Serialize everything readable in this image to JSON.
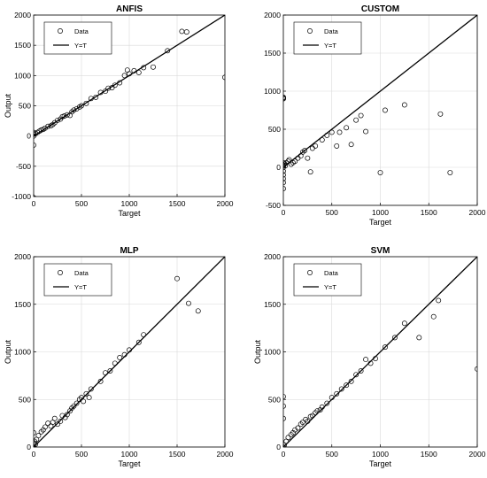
{
  "chart_data": [
    {
      "type": "scatter",
      "title": "ANFIS",
      "xlabel": "Target",
      "ylabel": "Output",
      "xlim": [
        0,
        2000
      ],
      "ylim": [
        -1000,
        2000
      ],
      "xticks": [
        0,
        500,
        1000,
        1500,
        2000
      ],
      "yticks": [
        -1000,
        -500,
        0,
        500,
        1000,
        1500,
        2000
      ],
      "grid": true,
      "legend": {
        "position": "top-left",
        "entries": [
          "Data",
          "Y=T"
        ]
      },
      "line": {
        "name": "Y=T",
        "x": [
          0,
          2000
        ],
        "y": [
          0,
          2000
        ]
      },
      "series": [
        {
          "name": "Data",
          "x": [
            0,
            0,
            0,
            0,
            0,
            20,
            40,
            60,
            80,
            100,
            120,
            150,
            180,
            200,
            220,
            250,
            280,
            300,
            320,
            350,
            380,
            400,
            420,
            450,
            480,
            500,
            550,
            600,
            650,
            700,
            750,
            780,
            820,
            850,
            900,
            950,
            980,
            1000,
            1050,
            1100,
            1150,
            1250,
            1400,
            1550,
            1600,
            2000
          ],
          "y": [
            -1020,
            -150,
            0,
            30,
            60,
            40,
            60,
            80,
            100,
            110,
            130,
            160,
            170,
            190,
            220,
            260,
            280,
            320,
            330,
            350,
            340,
            400,
            430,
            450,
            480,
            500,
            540,
            620,
            640,
            720,
            740,
            790,
            800,
            840,
            880,
            1000,
            1090,
            1030,
            1080,
            1050,
            1130,
            1140,
            1410,
            1730,
            1720,
            970
          ]
        }
      ]
    },
    {
      "type": "scatter",
      "title": "CUSTOM",
      "xlabel": "Target",
      "ylabel": "",
      "xlim": [
        0,
        2000
      ],
      "ylim": [
        -500,
        2000
      ],
      "xticks": [
        0,
        500,
        1000,
        1500,
        2000
      ],
      "yticks": [
        -500,
        0,
        500,
        1000,
        1500,
        2000
      ],
      "grid": true,
      "legend": {
        "position": "top-left",
        "entries": [
          "Data",
          "Y=T"
        ]
      },
      "line": {
        "name": "Y=T",
        "x": [
          0,
          2000
        ],
        "y": [
          0,
          2000
        ]
      },
      "series": [
        {
          "name": "Data",
          "x": [
            0,
            0,
            0,
            0,
            0,
            0,
            0,
            0,
            0,
            0,
            0,
            10,
            20,
            30,
            50,
            60,
            80,
            100,
            120,
            150,
            180,
            200,
            220,
            250,
            280,
            300,
            330,
            400,
            450,
            500,
            550,
            580,
            650,
            700,
            750,
            800,
            850,
            1000,
            1050,
            1250,
            1620,
            1720
          ],
          "y": [
            -280,
            -200,
            -150,
            -100,
            -50,
            0,
            30,
            60,
            900,
            910,
            920,
            40,
            20,
            60,
            80,
            100,
            40,
            60,
            80,
            120,
            150,
            200,
            220,
            120,
            -60,
            250,
            280,
            360,
            420,
            460,
            280,
            460,
            520,
            300,
            620,
            680,
            470,
            -70,
            750,
            820,
            700,
            -70
          ]
        }
      ]
    },
    {
      "type": "scatter",
      "title": "MLP",
      "xlabel": "Target",
      "ylabel": "Output",
      "xlim": [
        0,
        2000
      ],
      "ylim": [
        0,
        2000
      ],
      "xticks": [
        0,
        500,
        1000,
        1500,
        2000
      ],
      "yticks": [
        0,
        500,
        1000,
        1500,
        2000
      ],
      "grid": true,
      "legend": {
        "position": "top-left",
        "entries": [
          "Data",
          "Y=T"
        ]
      },
      "line": {
        "name": "Y=T",
        "x": [
          0,
          2000
        ],
        "y": [
          0,
          2000
        ]
      },
      "series": [
        {
          "name": "Data",
          "x": [
            0,
            0,
            0,
            10,
            20,
            30,
            50,
            80,
            100,
            120,
            150,
            180,
            200,
            220,
            250,
            280,
            300,
            330,
            350,
            380,
            400,
            420,
            450,
            480,
            500,
            520,
            550,
            580,
            600,
            700,
            750,
            800,
            850,
            900,
            950,
            1000,
            1100,
            1150,
            1500,
            1620,
            1720
          ],
          "y": [
            0,
            40,
            150,
            60,
            30,
            80,
            120,
            160,
            180,
            210,
            250,
            220,
            260,
            300,
            240,
            270,
            330,
            310,
            340,
            380,
            410,
            430,
            460,
            500,
            520,
            480,
            560,
            520,
            610,
            690,
            780,
            800,
            880,
            940,
            970,
            1020,
            1100,
            1180,
            1770,
            1510,
            1430
          ]
        }
      ]
    },
    {
      "type": "scatter",
      "title": "SVM",
      "xlabel": "Target",
      "ylabel": "Output",
      "xlim": [
        0,
        2000
      ],
      "ylim": [
        0,
        2000
      ],
      "xticks": [
        0,
        500,
        1000,
        1500,
        2000
      ],
      "yticks": [
        0,
        500,
        1000,
        1500,
        2000
      ],
      "grid": true,
      "legend": {
        "position": "top-left",
        "entries": [
          "Data",
          "Y=T"
        ]
      },
      "line": {
        "name": "Y=T",
        "x": [
          0,
          2000
        ],
        "y": [
          0,
          2000
        ]
      },
      "series": [
        {
          "name": "Data",
          "x": [
            0,
            0,
            0,
            0,
            10,
            30,
            50,
            80,
            100,
            120,
            150,
            180,
            200,
            230,
            250,
            280,
            300,
            330,
            350,
            380,
            400,
            450,
            500,
            550,
            600,
            650,
            700,
            750,
            800,
            850,
            900,
            950,
            1050,
            1150,
            1250,
            1400,
            1550,
            1600,
            2000
          ],
          "y": [
            0,
            300,
            430,
            530,
            20,
            60,
            100,
            130,
            150,
            180,
            200,
            240,
            260,
            290,
            270,
            320,
            330,
            360,
            380,
            390,
            420,
            460,
            520,
            560,
            610,
            650,
            690,
            760,
            800,
            920,
            880,
            930,
            1050,
            1150,
            1300,
            1150,
            1370,
            1540,
            820
          ]
        }
      ]
    }
  ]
}
